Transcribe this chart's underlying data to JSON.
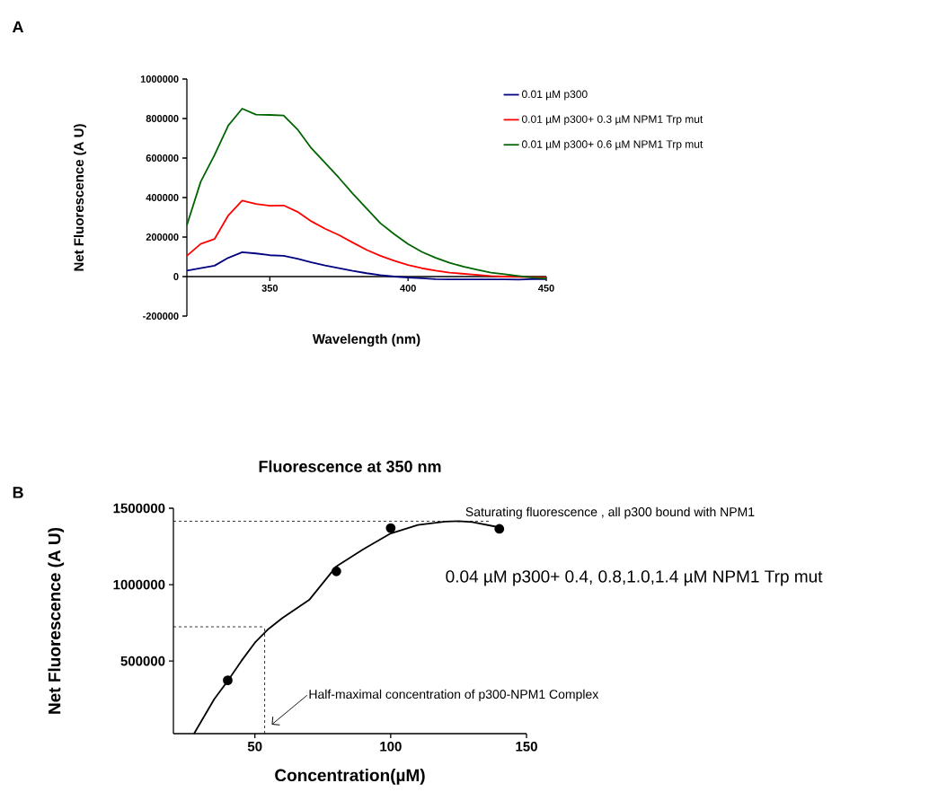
{
  "chart_data": [
    {
      "type": "line",
      "xlabel": "Wavelength (nm)",
      "ylabel": "Net Fluorescence (A U)",
      "annotations": [
        "A"
      ],
      "x": [
        320,
        325,
        330,
        335,
        340,
        345,
        350,
        355,
        360,
        365,
        370,
        375,
        380,
        385,
        390,
        395,
        400,
        405,
        410,
        415,
        420,
        425,
        430,
        435,
        440,
        445,
        450
      ],
      "series": [
        {
          "name": "0.01 µM p300",
          "color": "#000080",
          "values": [
            30000,
            43000,
            55000,
            95000,
            123000,
            117000,
            108000,
            105000,
            90000,
            72000,
            56000,
            43000,
            29000,
            17000,
            7000,
            0,
            -5000,
            -9000,
            -13000,
            -14000,
            -14000,
            -14000,
            -14000,
            -14000,
            -15000,
            -13000,
            -13000
          ]
        },
        {
          "name": "0.01 µM p300+ 0.3 µM NPM1 Trp mut",
          "color": "#ff0000",
          "values": [
            105000,
            165000,
            190000,
            310000,
            385000,
            368000,
            358000,
            360000,
            328000,
            280000,
            242000,
            210000,
            172000,
            135000,
            105000,
            80000,
            58000,
            42000,
            30000,
            20000,
            14000,
            8000,
            3000,
            0,
            -2000,
            -3000,
            -5000
          ]
        },
        {
          "name": "0.01 µM p300+ 0.6 µM NPM1 Trp mut",
          "color": "#006400",
          "values": [
            260000,
            480000,
            615000,
            765000,
            850000,
            820000,
            818000,
            815000,
            745000,
            650000,
            575000,
            500000,
            420000,
            345000,
            270000,
            215000,
            165000,
            125000,
            95000,
            70000,
            50000,
            35000,
            20000,
            12000,
            3000,
            -5000,
            -10000
          ]
        }
      ],
      "xlim": [
        320,
        450
      ],
      "ylim": [
        -200000,
        1000000
      ],
      "xticks": [
        350,
        400,
        450
      ],
      "yticks": [
        -200000,
        0,
        200000,
        400000,
        600000,
        800000,
        1000000
      ],
      "legend": "top right",
      "grid": false
    },
    {
      "type": "scatter",
      "title": "Fluorescence  at 350 nm",
      "xlabel": "Concentration(µM)",
      "ylabel": "Net Fluorescence (A U)",
      "annotations": [
        "B",
        "0.04 µM p300+ 0.4, 0.8,1.0,1.4 µM NPM1 Trp mut"
      ],
      "series": [
        {
          "type": "scatter",
          "color": "#000000",
          "marker": "circle",
          "x": [
            40,
            80,
            100,
            140
          ],
          "values": [
            374000,
            1087000,
            1370000,
            1365000
          ]
        },
        {
          "type": "line",
          "color": "#000000",
          "line_style": "solid",
          "x": [
            27.6,
            35,
            40,
            45,
            50,
            55,
            60,
            70,
            80,
            90,
            100,
            110,
            120,
            125,
            130,
            140
          ],
          "values": [
            25000,
            250000,
            370000,
            500000,
            620000,
            710000,
            780000,
            900000,
            1120000,
            1232000,
            1335000,
            1390000,
            1412000,
            1415000,
            1410000,
            1375000
          ]
        }
      ],
      "ref_lines": [
        {
          "axis": "y",
          "value": 1415000,
          "label": "Saturating fluorescence , all p300 bound with NPM1",
          "line_style": "dashed",
          "color": "#000000"
        },
        {
          "axis": "y",
          "value": 724000,
          "line_style": "dashed",
          "color": "#000000"
        },
        {
          "axis": "x",
          "value": 53.6,
          "label": "Half-maximal concentration of p300-NPM1 Complex",
          "line_style": "dashed",
          "color": "#000000"
        }
      ],
      "xlim": [
        20,
        150
      ],
      "ylim": [
        25000,
        1500000
      ],
      "xticks": [
        50,
        100,
        150
      ],
      "yticks": [
        500000,
        1000000,
        1500000
      ],
      "grid": false
    }
  ]
}
